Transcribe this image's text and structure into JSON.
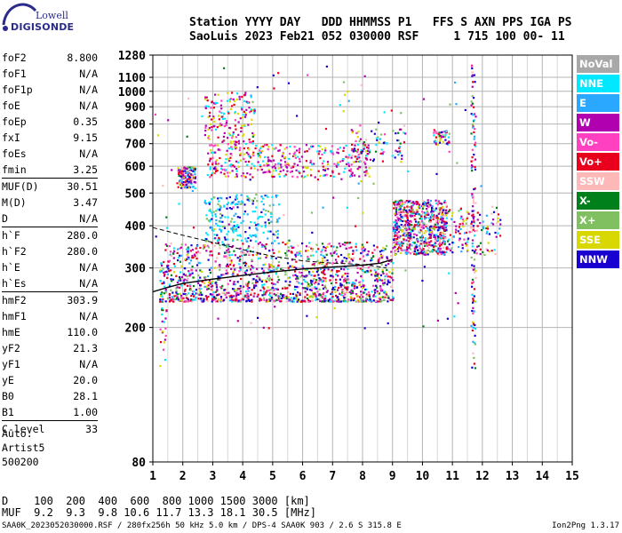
{
  "logo": {
    "line1": "Lowell",
    "line2": "DIGISONDE"
  },
  "header": {
    "row1": "Station YYYY DAY   DDD HHMMSS P1   FFS S AXN PPS IGA PS",
    "row2": "SaoLuis 2023 Feb21 052 030000 RSF     1 715 100 00- 11"
  },
  "params": {
    "group1": [
      {
        "label": "foF2",
        "value": "8.800"
      },
      {
        "label": "foF1",
        "value": "N/A"
      },
      {
        "label": "foF1p",
        "value": "N/A"
      },
      {
        "label": "foE",
        "value": "N/A"
      },
      {
        "label": "foEp",
        "value": "0.35"
      },
      {
        "label": "fxI",
        "value": "9.15"
      },
      {
        "label": "foEs",
        "value": "N/A"
      },
      {
        "label": "fmin",
        "value": "3.25"
      }
    ],
    "group2": [
      {
        "label": "MUF(D)",
        "value": "30.51"
      },
      {
        "label": "M(D)",
        "value": "3.47"
      },
      {
        "label": "D",
        "value": "N/A"
      }
    ],
    "group3": [
      {
        "label": "h`F",
        "value": "280.0"
      },
      {
        "label": "h`F2",
        "value": "280.0"
      },
      {
        "label": "h`E",
        "value": "N/A"
      },
      {
        "label": "h`Es",
        "value": "N/A"
      }
    ],
    "group4": [
      {
        "label": "hmF2",
        "value": "303.9"
      },
      {
        "label": "hmF1",
        "value": "N/A"
      },
      {
        "label": "hmE",
        "value": "110.0"
      },
      {
        "label": "yF2",
        "value": "21.3"
      },
      {
        "label": "yF1",
        "value": "N/A"
      },
      {
        "label": "yE",
        "value": "20.0"
      },
      {
        "label": "B0",
        "value": "28.1"
      },
      {
        "label": "B1",
        "value": "1.00"
      }
    ],
    "group5": [
      {
        "label": "C-level",
        "value": "33"
      }
    ]
  },
  "auto": {
    "line1": "Auto:",
    "line2": "Artist5",
    "line3": "500200"
  },
  "legend": [
    {
      "label": "NoVal",
      "color": "#a8a8a8"
    },
    {
      "label": "NNE",
      "color": "#00e8ff"
    },
    {
      "label": "E",
      "color": "#2aa8ff"
    },
    {
      "label": "W",
      "color": "#b000b0"
    },
    {
      "label": "Vo-",
      "color": "#ff40c0"
    },
    {
      "label": "Vo+",
      "color": "#e8001c"
    },
    {
      "label": "SSW",
      "color": "#ffb8b8"
    },
    {
      "label": "X-",
      "color": "#00801a"
    },
    {
      "label": "X+",
      "color": "#80c060"
    },
    {
      "label": "SSE",
      "color": "#d8d800"
    },
    {
      "label": "NNW",
      "color": "#1a00d0"
    }
  ],
  "table": {
    "row1": "D    100  200  400  600  800 1000 1500 3000 [km]",
    "row2": "MUF  9.2  9.3  9.8 10.6 11.7 13.3 18.1 30.5 [MHz]"
  },
  "footer": "SAA0K_2023052030000.RSF / 280fx256h 50 kHz 5.0 km / DPS-4 SAA0K 903 / 2.6 S 315.8 E",
  "version": "Ion2Png 1.3.17",
  "chart_data": {
    "type": "scatter",
    "xlim": [
      1,
      15
    ],
    "ylim": [
      80,
      1280
    ],
    "y_scale": "log",
    "x_ticks": [
      1,
      2,
      3,
      4,
      5,
      6,
      7,
      8,
      9,
      10,
      11,
      12,
      13,
      14,
      15
    ],
    "y_ticks": [
      80,
      200,
      300,
      400,
      500,
      600,
      700,
      800,
      900,
      1000,
      1100,
      1280
    ],
    "x_minor_step": 0.5,
    "grid": true,
    "trace": {
      "x": [
        1.0,
        1.5,
        2.0,
        3.0,
        4.0,
        5.0,
        6.0,
        7.0,
        8.0,
        8.6,
        9.0
      ],
      "y": [
        255,
        263,
        270,
        278,
        285,
        292,
        298,
        302,
        306,
        310,
        318
      ]
    },
    "profile": {
      "x": [
        1.0,
        2.0,
        3.0,
        4.0,
        5.0,
        6.0,
        7.0,
        7.8,
        8.4,
        8.8
      ],
      "y": [
        395,
        375,
        357,
        340,
        325,
        315,
        310,
        308,
        304,
        300
      ]
    },
    "clusters": [
      {
        "x": [
          1.2,
          9.0
        ],
        "y": [
          240,
          360
        ],
        "n": 1400,
        "color": "mix"
      },
      {
        "x": [
          9.0,
          10.8
        ],
        "y": [
          330,
          480
        ],
        "n": 700,
        "color": "mix"
      },
      {
        "x": [
          10.8,
          12.6
        ],
        "y": [
          330,
          460
        ],
        "n": 120,
        "color": "mix"
      },
      {
        "x": [
          2.7,
          5.2
        ],
        "y": [
          360,
          500
        ],
        "n": 220,
        "color": "cyan"
      },
      {
        "x": [
          1.8,
          2.4
        ],
        "y": [
          520,
          600
        ],
        "n": 140,
        "color": "mix"
      },
      {
        "x": [
          2.8,
          8.2
        ],
        "y": [
          560,
          700
        ],
        "n": 380,
        "color": "magenta"
      },
      {
        "x": [
          2.7,
          4.4
        ],
        "y": [
          700,
          1000
        ],
        "n": 160,
        "color": "magenta"
      },
      {
        "x": [
          7.6,
          9.4
        ],
        "y": [
          620,
          780
        ],
        "n": 80,
        "color": "mix"
      },
      {
        "x": [
          10.3,
          10.9
        ],
        "y": [
          700,
          780
        ],
        "n": 50,
        "color": "mix"
      },
      {
        "x": [
          11.6,
          11.75
        ],
        "y": [
          150,
          1230
        ],
        "n": 120,
        "color": "mix"
      },
      {
        "x": [
          1.2,
          1.5
        ],
        "y": [
          150,
          230
        ],
        "n": 20,
        "color": "magenta"
      },
      {
        "x": [
          1.0,
          12.0
        ],
        "y": [
          200,
          1200
        ],
        "n": 140,
        "color": "mix"
      }
    ]
  }
}
